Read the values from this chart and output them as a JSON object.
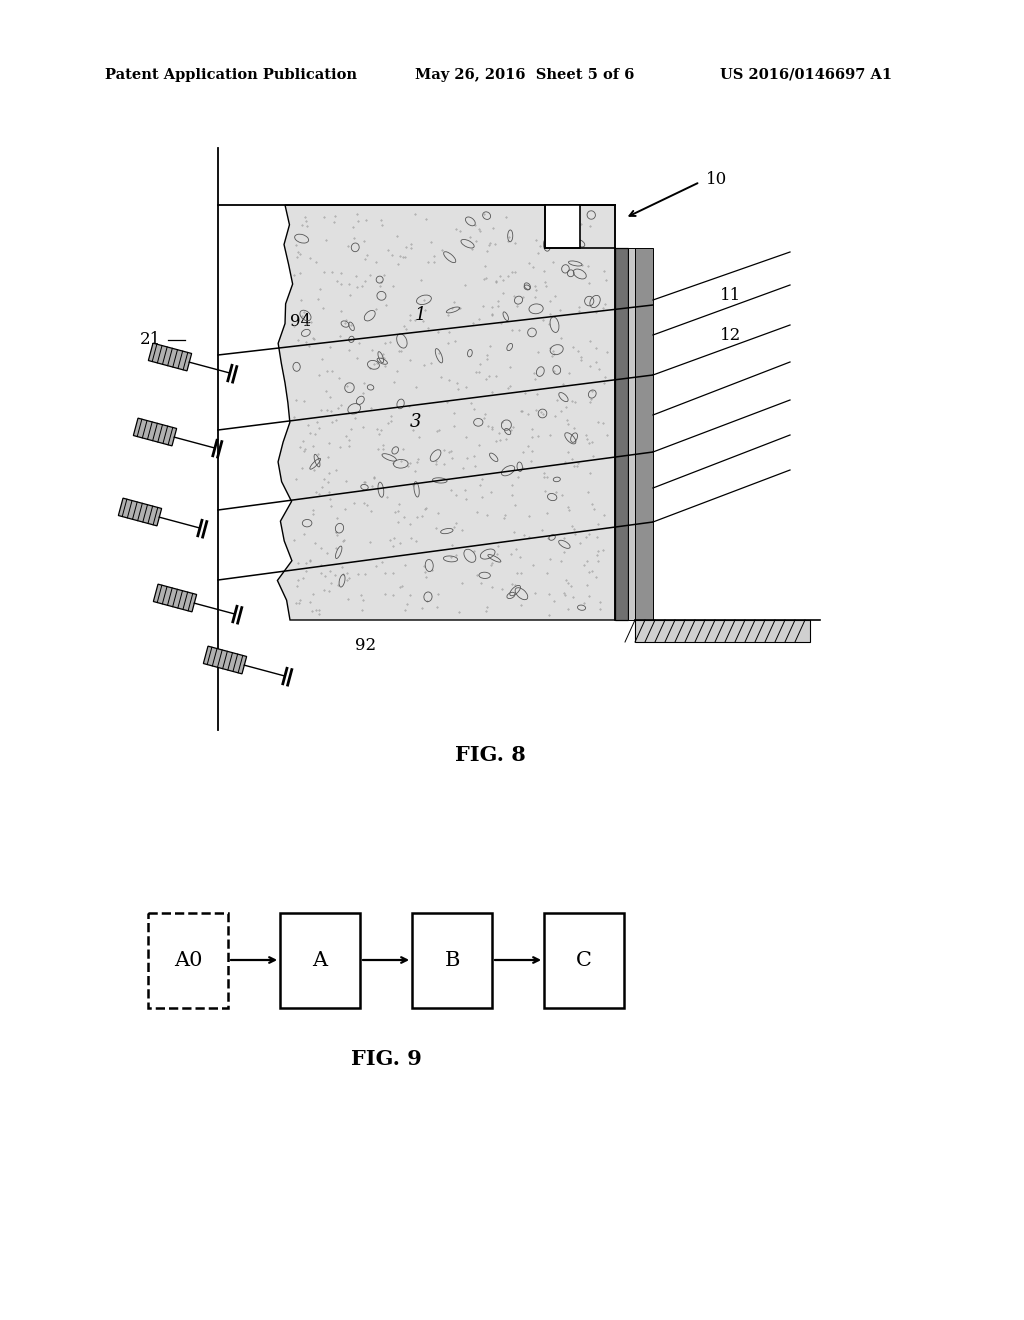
{
  "bg_color": "#ffffff",
  "header_left": "Patent Application Publication",
  "header_center": "May 26, 2016  Sheet 5 of 6",
  "header_right": "US 2016/0146697 A1",
  "fig8_label": "FIG. 8",
  "fig9_label": "FIG. 9",
  "label_10": "10",
  "label_11": "11",
  "label_12": "12",
  "label_1": "1",
  "label_3": "3",
  "label_21": "21",
  "label_94": "94",
  "label_92": "92",
  "flow_boxes": [
    "A0",
    "A",
    "B",
    "C"
  ]
}
